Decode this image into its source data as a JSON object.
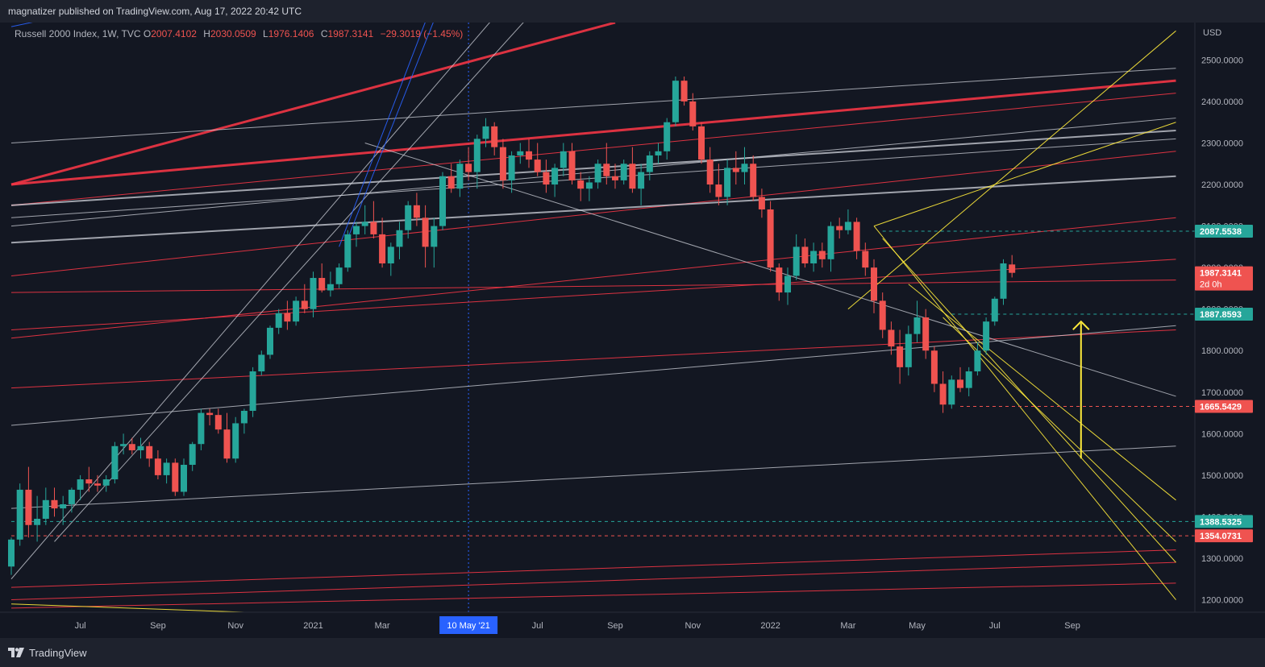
{
  "header": {
    "published_by": "magnatizer published on TradingView.com, Aug 17, 2022 20:42 UTC"
  },
  "footer": {
    "brand": "TradingView"
  },
  "legend": {
    "symbol": "Russell 2000 Index, 1W, TVC",
    "open_label": "O",
    "open": "2007.4102",
    "high_label": "H",
    "high": "2030.0509",
    "low_label": "L",
    "low": "1976.1406",
    "close_label": "C",
    "close": "1987.3141",
    "change": "−29.3019 (−1.45%)"
  },
  "colors": {
    "background": "#131722",
    "panel": "#1e222d",
    "up": "#26a69a",
    "down": "#ef5350",
    "trend_red": "#f23645",
    "trend_white": "#d1d4dc",
    "trend_yellow": "#ffeb3b",
    "trend_blue": "#2962ff"
  },
  "chart_data": {
    "type": "candlestick",
    "currency": "USD",
    "ylim": [
      1170,
      2590
    ],
    "y_ticks": [
      1200,
      1300,
      1400,
      1500,
      1600,
      1700,
      1800,
      1900,
      2000,
      2100,
      2200,
      2300,
      2400,
      2500
    ],
    "x_ticks": [
      {
        "label": "Jul",
        "bar": 8
      },
      {
        "label": "Sep",
        "bar": 17
      },
      {
        "label": "Nov",
        "bar": 26
      },
      {
        "label": "2021",
        "bar": 35
      },
      {
        "label": "Mar",
        "bar": 43
      },
      {
        "label": "Jul",
        "bar": 61
      },
      {
        "label": "Sep",
        "bar": 70
      },
      {
        "label": "Nov",
        "bar": 79
      },
      {
        "label": "2022",
        "bar": 88
      },
      {
        "label": "Mar",
        "bar": 97
      },
      {
        "label": "May",
        "bar": 105
      },
      {
        "label": "Jul",
        "bar": 114
      },
      {
        "label": "Sep",
        "bar": 123
      }
    ],
    "crosshair": {
      "label": "10 May '21",
      "bar": 53
    },
    "candles": [
      [
        1280,
        1350,
        1260,
        1345
      ],
      [
        1345,
        1480,
        1330,
        1465
      ],
      [
        1465,
        1520,
        1350,
        1380
      ],
      [
        1380,
        1450,
        1340,
        1395
      ],
      [
        1395,
        1470,
        1380,
        1440
      ],
      [
        1440,
        1470,
        1400,
        1420
      ],
      [
        1420,
        1450,
        1380,
        1430
      ],
      [
        1430,
        1470,
        1410,
        1465
      ],
      [
        1465,
        1500,
        1440,
        1490
      ],
      [
        1490,
        1520,
        1460,
        1480
      ],
      [
        1480,
        1500,
        1460,
        1475
      ],
      [
        1475,
        1500,
        1460,
        1490
      ],
      [
        1490,
        1580,
        1480,
        1570
      ],
      [
        1570,
        1600,
        1550,
        1575
      ],
      [
        1575,
        1590,
        1550,
        1560
      ],
      [
        1560,
        1590,
        1540,
        1570
      ],
      [
        1570,
        1580,
        1520,
        1540
      ],
      [
        1540,
        1560,
        1490,
        1500
      ],
      [
        1500,
        1540,
        1480,
        1530
      ],
      [
        1530,
        1540,
        1450,
        1460
      ],
      [
        1460,
        1540,
        1450,
        1525
      ],
      [
        1525,
        1580,
        1510,
        1575
      ],
      [
        1575,
        1660,
        1560,
        1650
      ],
      [
        1650,
        1660,
        1620,
        1645
      ],
      [
        1645,
        1660,
        1600,
        1610
      ],
      [
        1610,
        1650,
        1530,
        1540
      ],
      [
        1540,
        1640,
        1530,
        1625
      ],
      [
        1625,
        1660,
        1600,
        1655
      ],
      [
        1655,
        1760,
        1640,
        1750
      ],
      [
        1750,
        1800,
        1740,
        1790
      ],
      [
        1790,
        1860,
        1780,
        1855
      ],
      [
        1855,
        1900,
        1840,
        1890
      ],
      [
        1890,
        1920,
        1850,
        1870
      ],
      [
        1870,
        1930,
        1860,
        1920
      ],
      [
        1920,
        1960,
        1890,
        1900
      ],
      [
        1900,
        1990,
        1880,
        1975
      ],
      [
        1975,
        2010,
        1940,
        1945
      ],
      [
        1945,
        1990,
        1930,
        1960
      ],
      [
        1960,
        2010,
        1950,
        2000
      ],
      [
        2000,
        2090,
        1990,
        2080
      ],
      [
        2080,
        2110,
        2050,
        2100
      ],
      [
        2100,
        2150,
        2080,
        2110
      ],
      [
        2110,
        2160,
        2070,
        2080
      ],
      [
        2080,
        2120,
        2000,
        2010
      ],
      [
        2010,
        2060,
        1980,
        2050
      ],
      [
        2050,
        2110,
        2020,
        2090
      ],
      [
        2090,
        2160,
        2070,
        2150
      ],
      [
        2150,
        2180,
        2100,
        2120
      ],
      [
        2120,
        2150,
        2000,
        2050
      ],
      [
        2050,
        2120,
        2000,
        2100
      ],
      [
        2100,
        2230,
        2090,
        2220
      ],
      [
        2220,
        2250,
        2180,
        2190
      ],
      [
        2190,
        2260,
        2170,
        2250
      ],
      [
        2250,
        2290,
        2210,
        2230
      ],
      [
        2230,
        2320,
        2190,
        2310
      ],
      [
        2310,
        2360,
        2290,
        2340
      ],
      [
        2340,
        2350,
        2270,
        2290
      ],
      [
        2290,
        2310,
        2190,
        2210
      ],
      [
        2210,
        2280,
        2180,
        2270
      ],
      [
        2270,
        2300,
        2250,
        2280
      ],
      [
        2280,
        2310,
        2240,
        2260
      ],
      [
        2260,
        2300,
        2220,
        2230
      ],
      [
        2230,
        2260,
        2180,
        2200
      ],
      [
        2200,
        2250,
        2170,
        2240
      ],
      [
        2240,
        2300,
        2220,
        2280
      ],
      [
        2280,
        2300,
        2200,
        2210
      ],
      [
        2210,
        2230,
        2160,
        2190
      ],
      [
        2190,
        2220,
        2160,
        2205
      ],
      [
        2205,
        2260,
        2190,
        2250
      ],
      [
        2250,
        2300,
        2200,
        2220
      ],
      [
        2220,
        2250,
        2190,
        2210
      ],
      [
        2210,
        2260,
        2200,
        2250
      ],
      [
        2250,
        2290,
        2180,
        2190
      ],
      [
        2190,
        2250,
        2150,
        2230
      ],
      [
        2230,
        2280,
        2210,
        2270
      ],
      [
        2270,
        2300,
        2250,
        2280
      ],
      [
        2280,
        2360,
        2260,
        2350
      ],
      [
        2350,
        2460,
        2340,
        2450
      ],
      [
        2450,
        2460,
        2390,
        2400
      ],
      [
        2400,
        2420,
        2330,
        2340
      ],
      [
        2340,
        2350,
        2250,
        2260
      ],
      [
        2260,
        2290,
        2180,
        2200
      ],
      [
        2200,
        2250,
        2150,
        2170
      ],
      [
        2170,
        2260,
        2150,
        2240
      ],
      [
        2240,
        2280,
        2200,
        2230
      ],
      [
        2230,
        2290,
        2200,
        2250
      ],
      [
        2250,
        2270,
        2160,
        2170
      ],
      [
        2170,
        2190,
        2120,
        2140
      ],
      [
        2140,
        2160,
        1990,
        2000
      ],
      [
        2000,
        2010,
        1920,
        1940
      ],
      [
        1940,
        2000,
        1910,
        1980
      ],
      [
        1980,
        2080,
        1970,
        2050
      ],
      [
        2050,
        2070,
        2000,
        2010
      ],
      [
        2010,
        2060,
        1990,
        2040
      ],
      [
        2040,
        2060,
        2000,
        2020
      ],
      [
        2020,
        2110,
        1990,
        2100
      ],
      [
        2100,
        2120,
        2070,
        2090
      ],
      [
        2090,
        2140,
        2080,
        2110
      ],
      [
        2110,
        2120,
        2020,
        2040
      ],
      [
        2040,
        2060,
        1980,
        2000
      ],
      [
        2000,
        2020,
        1890,
        1920
      ],
      [
        1920,
        1940,
        1830,
        1850
      ],
      [
        1850,
        1870,
        1790,
        1810
      ],
      [
        1810,
        1850,
        1720,
        1760
      ],
      [
        1760,
        1860,
        1740,
        1840
      ],
      [
        1840,
        1920,
        1820,
        1880
      ],
      [
        1880,
        1900,
        1780,
        1800
      ],
      [
        1800,
        1810,
        1700,
        1720
      ],
      [
        1720,
        1750,
        1650,
        1670
      ],
      [
        1670,
        1740,
        1660,
        1730
      ],
      [
        1730,
        1760,
        1700,
        1710
      ],
      [
        1710,
        1760,
        1690,
        1750
      ],
      [
        1750,
        1820,
        1740,
        1800
      ],
      [
        1800,
        1880,
        1790,
        1870
      ],
      [
        1870,
        1930,
        1860,
        1925
      ],
      [
        1925,
        2020,
        1910,
        2010
      ],
      [
        2007.41,
        2030.05,
        1976.14,
        1987.31
      ]
    ],
    "price_labels": [
      {
        "value": 2087.5538,
        "label": "2087.5538",
        "color": "#26a69a"
      },
      {
        "value": 1987.3141,
        "label": "1987.3141",
        "sub": "2d 0h",
        "color": "#ef5350"
      },
      {
        "value": 1887.8593,
        "label": "1887.8593",
        "color": "#26a69a"
      },
      {
        "value": 1665.5429,
        "label": "1665.5429",
        "color": "#ef5350"
      },
      {
        "value": 1388.5325,
        "label": "1388.5325",
        "color": "#26a69a"
      },
      {
        "value": 1354.0731,
        "label": "1354.0731",
        "color": "#ef5350"
      }
    ],
    "h_levels": [
      {
        "value": 2087.5538,
        "color": "#26a69a",
        "from_bar": 101
      },
      {
        "value": 1887.8593,
        "color": "#26a69a",
        "from_bar": 109
      },
      {
        "value": 1665.5429,
        "color": "#ef5350",
        "from_bar": 110
      },
      {
        "value": 1388.5325,
        "color": "#26a69a",
        "from_bar": 0
      },
      {
        "value": 1354.0731,
        "color": "#ef5350",
        "from_bar": 0
      }
    ],
    "trendlines": [
      {
        "b1": 0,
        "p1": 2200,
        "b2": 70,
        "p2": 2590,
        "color": "red",
        "w": 3
      },
      {
        "b1": 0,
        "p1": 2200,
        "b2": 135,
        "p2": 2450,
        "color": "red",
        "w": 3
      },
      {
        "b1": 0,
        "p1": 2580,
        "b2": 50,
        "p2": 2800,
        "color": "blue",
        "w": 1
      },
      {
        "b1": 0,
        "p1": 2150,
        "b2": 135,
        "p2": 2420,
        "color": "red",
        "w": 1
      },
      {
        "b1": 0,
        "p1": 1980,
        "b2": 135,
        "p2": 2280,
        "color": "red",
        "w": 1
      },
      {
        "b1": 0,
        "p1": 1850,
        "b2": 135,
        "p2": 2020,
        "color": "red",
        "w": 1
      },
      {
        "b1": 0,
        "p1": 1830,
        "b2": 135,
        "p2": 2120,
        "color": "red",
        "w": 1
      },
      {
        "b1": 0,
        "p1": 1710,
        "b2": 135,
        "p2": 1850,
        "color": "red",
        "w": 1
      },
      {
        "b1": 0,
        "p1": 1940,
        "b2": 135,
        "p2": 1970,
        "color": "red",
        "w": 1
      },
      {
        "b1": 0,
        "p1": 1230,
        "b2": 135,
        "p2": 1320,
        "color": "red",
        "w": 1
      },
      {
        "b1": 0,
        "p1": 1200,
        "b2": 135,
        "p2": 1290,
        "color": "red",
        "w": 1
      },
      {
        "b1": 0,
        "p1": 1180,
        "b2": 135,
        "p2": 1240,
        "color": "red",
        "w": 1
      },
      {
        "b1": 0,
        "p1": 2150,
        "b2": 135,
        "p2": 2330,
        "color": "white",
        "w": 2
      },
      {
        "b1": 0,
        "p1": 2060,
        "b2": 135,
        "p2": 2220,
        "color": "white",
        "w": 2
      },
      {
        "b1": 0,
        "p1": 2120,
        "b2": 135,
        "p2": 2310,
        "color": "white",
        "w": 1
      },
      {
        "b1": 0,
        "p1": 2100,
        "b2": 135,
        "p2": 2360,
        "color": "white",
        "w": 1
      },
      {
        "b1": 0,
        "p1": 2300,
        "b2": 135,
        "p2": 2480,
        "color": "white",
        "w": 1
      },
      {
        "b1": 0,
        "p1": 1620,
        "b2": 135,
        "p2": 1860,
        "color": "white",
        "w": 1
      },
      {
        "b1": 0,
        "p1": 1420,
        "b2": 135,
        "p2": 1570,
        "color": "white",
        "w": 1
      },
      {
        "b1": 41,
        "p1": 2300,
        "b2": 135,
        "p2": 1690,
        "color": "white",
        "w": 1
      },
      {
        "b1": 0,
        "p1": 1250,
        "b2": 60,
        "p2": 2700,
        "color": "white",
        "w": 1
      },
      {
        "b1": 5,
        "p1": 1340,
        "b2": 65,
        "p2": 2720,
        "color": "white",
        "w": 1
      },
      {
        "b1": 38,
        "p1": 2050,
        "b2": 50,
        "p2": 2700,
        "color": "blue",
        "w": 1
      },
      {
        "b1": 39,
        "p1": 2070,
        "b2": 51,
        "p2": 2700,
        "color": "blue",
        "w": 1
      },
      {
        "b1": 97,
        "p1": 1900,
        "b2": 135,
        "p2": 2570,
        "color": "yellow",
        "w": 1
      },
      {
        "b1": 100,
        "p1": 2100,
        "b2": 135,
        "p2": 2350,
        "color": "yellow",
        "w": 1
      },
      {
        "b1": 100,
        "p1": 2100,
        "b2": 135,
        "p2": 1200,
        "color": "yellow",
        "w": 1
      },
      {
        "b1": 101,
        "p1": 2070,
        "b2": 135,
        "p2": 1290,
        "color": "yellow",
        "w": 1
      },
      {
        "b1": 104,
        "p1": 1960,
        "b2": 135,
        "p2": 1440,
        "color": "yellow",
        "w": 1
      },
      {
        "b1": 108,
        "p1": 1880,
        "b2": 135,
        "p2": 1340,
        "color": "yellow",
        "w": 1
      },
      {
        "b1": 0,
        "p1": 1190,
        "b2": 27,
        "p2": 1170,
        "color": "yellow",
        "w": 1
      }
    ],
    "arrow": {
      "bar": 124,
      "from": 1540,
      "to": 1870,
      "color": "#ffeb3b"
    }
  }
}
